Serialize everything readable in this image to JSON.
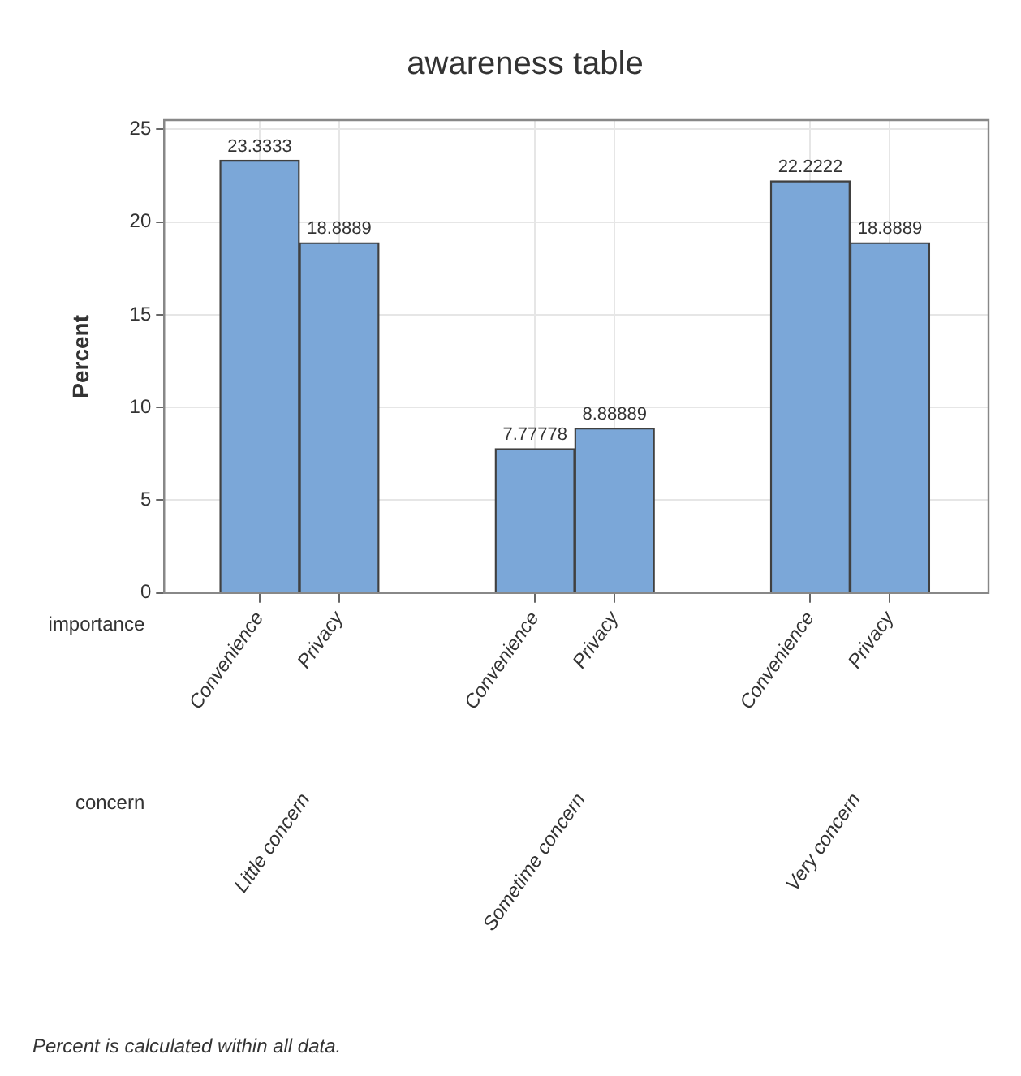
{
  "chart_data": {
    "type": "bar",
    "title": "awareness table",
    "ylabel": "Percent",
    "xlabel": "importance",
    "categories": [
      "Convenience",
      "Privacy",
      "Convenience",
      "Privacy",
      "Convenience",
      "Privacy"
    ],
    "values": [
      23.3333,
      18.8889,
      7.77778,
      8.88889,
      22.2222,
      18.8889
    ],
    "color": "#7ba7d8",
    "ylim": [
      0,
      25.5
    ],
    "yticks": [
      0,
      5,
      10,
      15,
      20,
      25
    ],
    "grid": true,
    "data_labels": true,
    "annotations": [
      "concern",
      "Little concern",
      "Sometime concern",
      "Very concern",
      "Percent is calculated within all data."
    ]
  }
}
